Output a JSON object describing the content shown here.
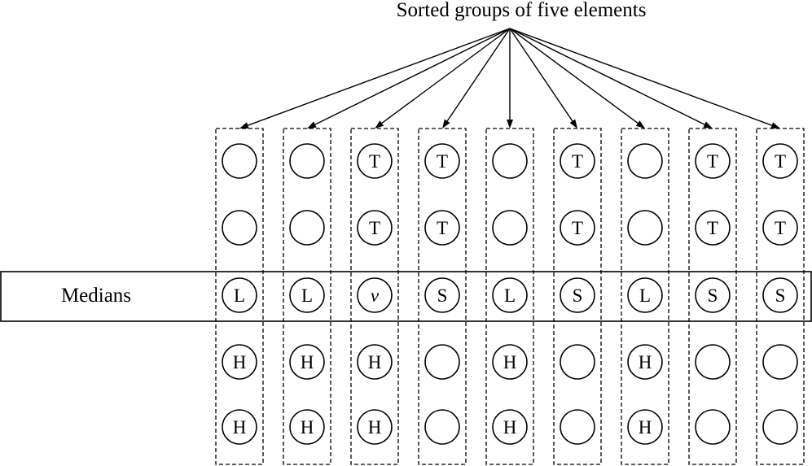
{
  "title": "Sorted groups of five elements",
  "row_label": "Medians",
  "groups": [
    {
      "cells": [
        "",
        "",
        "L",
        "H",
        "H"
      ]
    },
    {
      "cells": [
        "",
        "",
        "L",
        "H",
        "H"
      ]
    },
    {
      "cells": [
        "T",
        "T",
        "v",
        "H",
        "H"
      ]
    },
    {
      "cells": [
        "T",
        "T",
        "S",
        "",
        ""
      ]
    },
    {
      "cells": [
        "",
        "",
        "L",
        "H",
        "H"
      ]
    },
    {
      "cells": [
        "T",
        "T",
        "S",
        "",
        ""
      ]
    },
    {
      "cells": [
        "",
        "",
        "L",
        "H",
        "H"
      ]
    },
    {
      "cells": [
        "T",
        "T",
        "S",
        "",
        ""
      ]
    },
    {
      "cells": [
        "T",
        "T",
        "S",
        "",
        ""
      ]
    }
  ],
  "italic_letters": [
    "v"
  ]
}
